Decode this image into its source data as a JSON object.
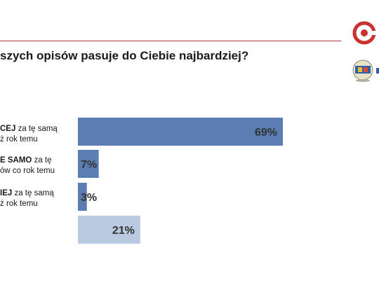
{
  "title": "szych opisów pasuje do Ciebie najbardziej?",
  "colors": {
    "rule": "#b03a3a",
    "bar_primary": "#5b7db3",
    "bar_light": "#b9c9e0",
    "logo": "#c8322f"
  },
  "icons": [
    "logo-ring-icon",
    "emblem-globe-icon"
  ],
  "chart_data": {
    "type": "bar",
    "orientation": "horizontal",
    "categories": [
      {
        "bold": "CEJ",
        "rest": " za tę samą",
        "line2": "ż rok temu"
      },
      {
        "bold": "E SAMO",
        "rest": " za tę",
        "line2": "ów co rok temu"
      },
      {
        "bold": "IEJ",
        "rest": " za tę samą",
        "line2": "ż rok temu"
      },
      {
        "bold": "",
        "rest": "",
        "line2": ""
      }
    ],
    "values": [
      69,
      7,
      3,
      21
    ],
    "value_labels": [
      "69%",
      "7%",
      "3%",
      "21%"
    ],
    "xlim": [
      0,
      100
    ],
    "grid": false,
    "legend": "none"
  }
}
